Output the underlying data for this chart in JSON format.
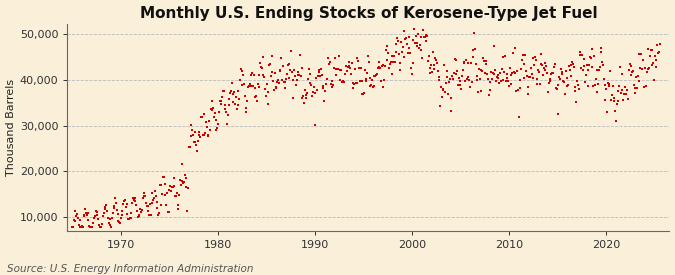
{
  "title": "Monthly U.S. Ending Stocks of Kerosene-Type Jet Fuel",
  "ylabel": "Thousand Barrels",
  "source": "Source: U.S. Energy Information Administration",
  "background_color": "#faefd9",
  "plot_bg_color": "#faefd9",
  "marker_color": "#cc0000",
  "marker_size": 3.0,
  "ylim": [
    7000,
    52000
  ],
  "yticks": [
    10000,
    20000,
    30000,
    40000,
    50000
  ],
  "ytick_labels": [
    "10,000",
    "20,000",
    "30,000",
    "40,000",
    "50,000"
  ],
  "xticks": [
    1970,
    1980,
    1990,
    2000,
    2010,
    2020
  ],
  "xlim_left": 1964.5,
  "xlim_right": 2026.5,
  "title_fontsize": 11,
  "axis_fontsize": 8,
  "source_fontsize": 7.5
}
